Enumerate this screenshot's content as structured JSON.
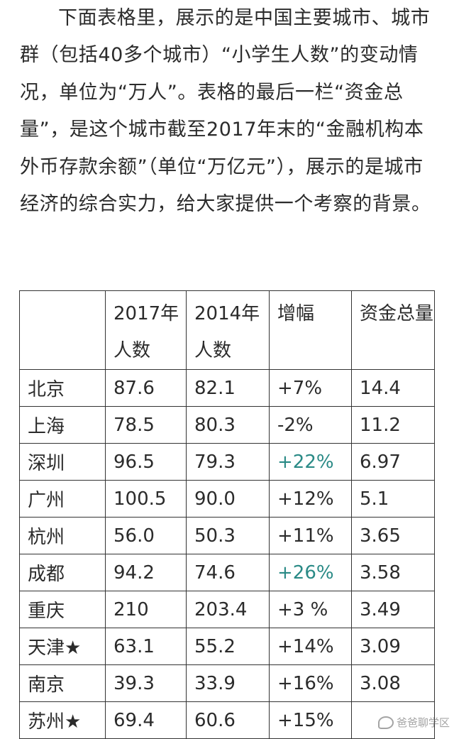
{
  "intro": "下面表格里，展示的是中国主要城市、城市群（包括40多个城市）“小学生人数”的变动情况，单位为“万人”。表格的最后一栏“资金总量”，是这个城市截至2017年末的“金融机构本外币存款余额”（单位“万亿元”），展示的是城市经济的综合实力，给大家提供一个考察的背景。",
  "table": {
    "headers": [
      "",
      "2017年人数",
      "2014年人数",
      "增幅",
      "资金总量"
    ],
    "rows": [
      {
        "city": "北京",
        "p2017": "87.6",
        "p2014": "82.1",
        "growth": "+7%",
        "funds": "14.4"
      },
      {
        "city": "上海",
        "p2017": "78.5",
        "p2014": "80.3",
        "growth": "-2%",
        "funds": "11.2"
      },
      {
        "city": "深圳",
        "p2017": "96.5",
        "p2014": "79.3",
        "growth": "+22%",
        "funds": "6.97"
      },
      {
        "city": "广州",
        "p2017": "100.5",
        "p2014": "90.0",
        "growth": "+12%",
        "funds": "5.1"
      },
      {
        "city": "杭州",
        "p2017": "56.0",
        "p2014": "50.3",
        "growth": "+11%",
        "funds": "3.65"
      },
      {
        "city": "成都",
        "p2017": "94.2",
        "p2014": "74.6",
        "growth": "+26%",
        "funds": "3.58"
      },
      {
        "city": "重庆",
        "p2017": "210",
        "p2014": "203.4",
        "growth": "+3 %",
        "funds": "3.49"
      },
      {
        "city": "天津★",
        "p2017": "63.1",
        "p2014": "55.2",
        "growth": "+14%",
        "funds": "3.09"
      },
      {
        "city": "南京",
        "p2017": "39.3",
        "p2014": "33.9",
        "growth": "+16%",
        "funds": "3.08"
      },
      {
        "city": "苏州★",
        "p2017": "69.4",
        "p2014": "60.6",
        "growth": "+15%",
        "funds": ""
      }
    ]
  },
  "colors": {
    "highlight_growth": "#2a8a86"
  },
  "watermark": {
    "text": "爸爸聊学区"
  }
}
